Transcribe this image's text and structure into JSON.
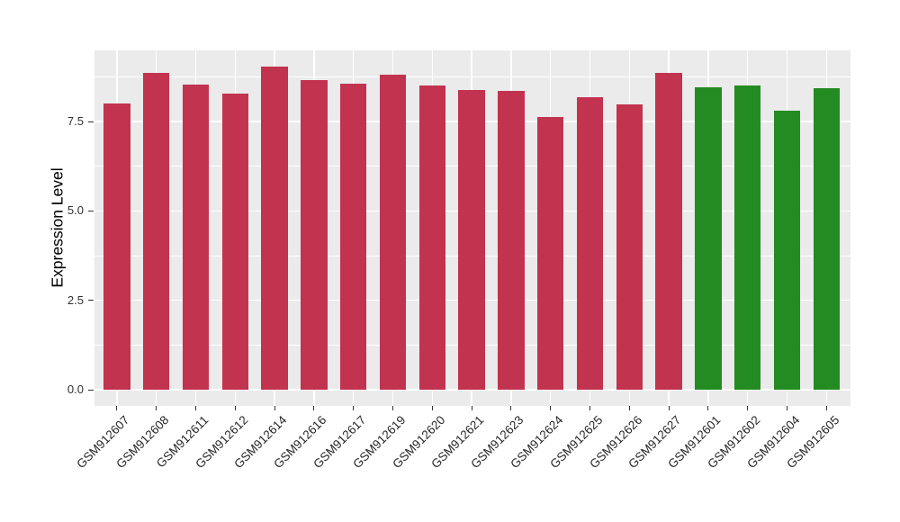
{
  "chart_data": {
    "type": "bar",
    "title": "",
    "xlabel": "",
    "ylabel": "Expression Level",
    "categories": [
      "GSM912607",
      "GSM912608",
      "GSM912611",
      "GSM912612",
      "GSM912614",
      "GSM912616",
      "GSM912617",
      "GSM912619",
      "GSM912620",
      "GSM912621",
      "GSM912623",
      "GSM912624",
      "GSM912625",
      "GSM912626",
      "GSM912627",
      "GSM912601",
      "GSM912602",
      "GSM912604",
      "GSM912605"
    ],
    "values": [
      8.01,
      8.86,
      8.53,
      8.28,
      9.03,
      8.66,
      8.55,
      8.81,
      8.51,
      8.39,
      8.36,
      7.63,
      8.18,
      7.99,
      8.86,
      8.47,
      8.51,
      7.8,
      8.43
    ],
    "groups": [
      "red",
      "red",
      "red",
      "red",
      "red",
      "red",
      "red",
      "red",
      "red",
      "red",
      "red",
      "red",
      "red",
      "red",
      "red",
      "green",
      "green",
      "green",
      "green"
    ],
    "group_colors": {
      "red": "#C23350",
      "green": "#238B21"
    },
    "ytick_labels": [
      "0.0",
      "2.5",
      "5.0",
      "7.5"
    ],
    "ytick_values": [
      0,
      2.5,
      5,
      7.5
    ],
    "yminor_values": [
      1.25,
      3.75,
      6.25,
      8.75
    ],
    "ylim": [
      0,
      9.47
    ],
    "grid": "on",
    "legend_position": "none",
    "plot_background": "#EBEBEB",
    "grid_color": "#FFFFFF",
    "page_background": "#FFFFFF"
  }
}
